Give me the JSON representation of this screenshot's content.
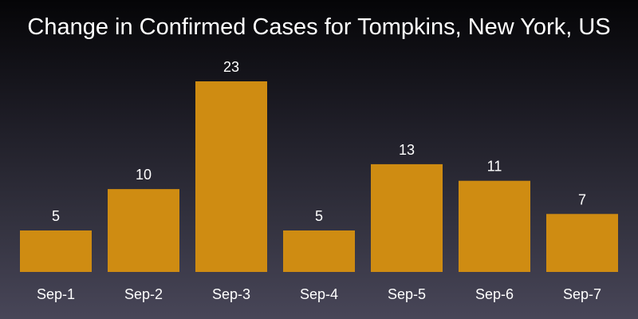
{
  "chart_data": {
    "type": "bar",
    "title": "Change in Confirmed Cases for Tompkins, New York, US",
    "categories": [
      "Sep-1",
      "Sep-2",
      "Sep-3",
      "Sep-4",
      "Sep-5",
      "Sep-6",
      "Sep-7"
    ],
    "values": [
      5,
      10,
      23,
      5,
      13,
      11,
      7
    ],
    "data_labels": true,
    "grid": false,
    "legend": "none",
    "ylim": [
      0,
      23
    ],
    "bar_color": "#cf8c12",
    "background_top_color": "#050507",
    "background_bottom_color": "#484658"
  }
}
